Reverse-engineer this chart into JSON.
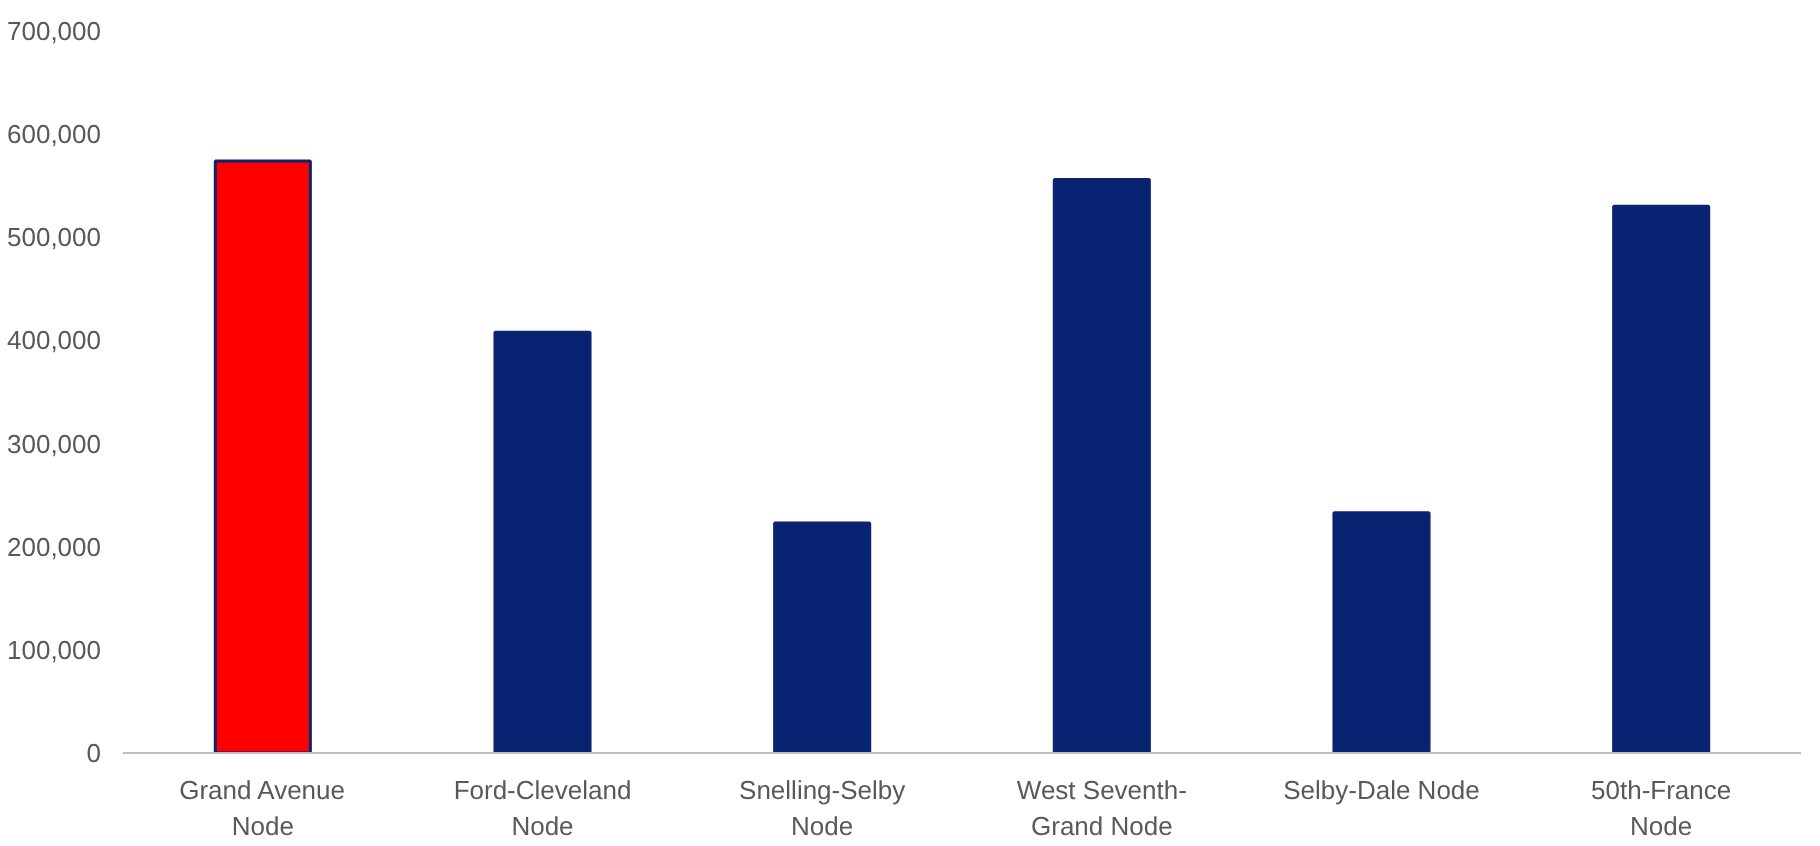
{
  "chart_data": {
    "type": "bar",
    "categories": [
      "Grand Avenue Node",
      "Ford-Cleveland Node",
      "Snelling-Selby Node",
      "West Seventh-Grand Node",
      "Selby-Dale Node",
      "50th-France Node"
    ],
    "values": [
      574000,
      408000,
      223000,
      556000,
      233000,
      530000
    ],
    "colors": [
      "#ff0000",
      "#062270",
      "#062270",
      "#062270",
      "#062270",
      "#062270"
    ],
    "ylim": [
      0,
      700000
    ],
    "yticks": [
      {
        "value": 0,
        "label": "0"
      },
      {
        "value": 100000,
        "label": "100,000"
      },
      {
        "value": 200000,
        "label": "200,000"
      },
      {
        "value": 300000,
        "label": "300,000"
      },
      {
        "value": 400000,
        "label": "400,000"
      },
      {
        "value": 500000,
        "label": "500,000"
      },
      {
        "value": 600000,
        "label": "600,000"
      },
      {
        "value": 700000,
        "label": "700,000"
      }
    ],
    "grid": false
  }
}
